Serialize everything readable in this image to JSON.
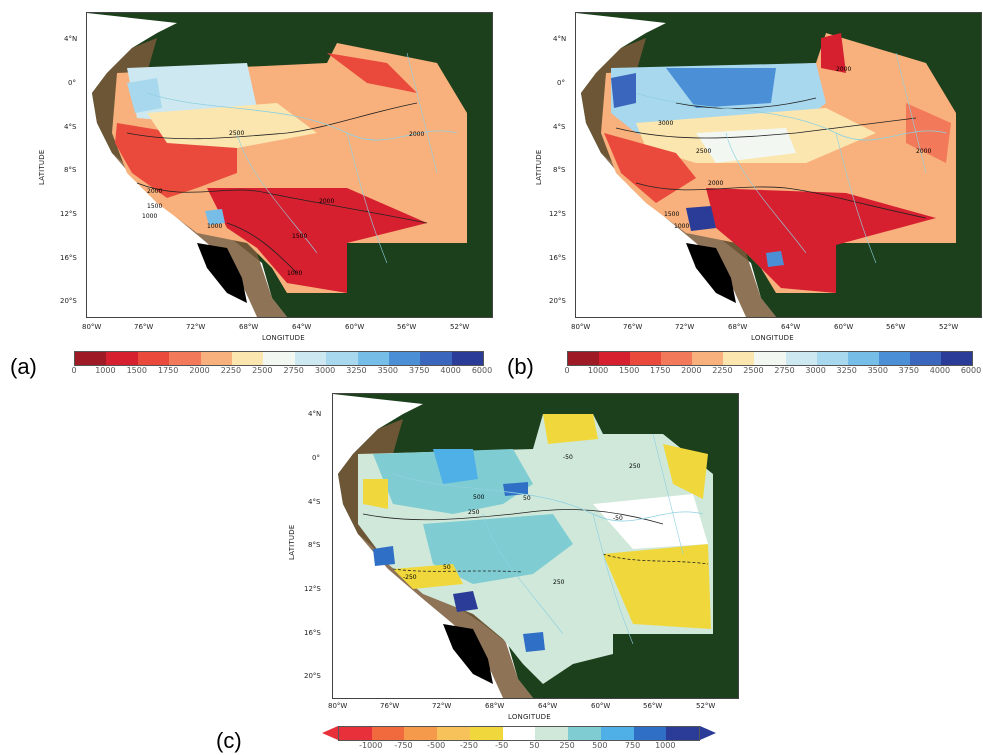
{
  "panels": [
    {
      "letter": "(a)",
      "xlabel": "LONGITUDE",
      "ylabel": "LATITUDE",
      "lat_ticks": [
        "4°N",
        "0°",
        "4°S",
        "8°S",
        "12°S",
        "16°S",
        "20°S"
      ],
      "lon_ticks": [
        "80°W",
        "76°W",
        "72°W",
        "68°W",
        "64°W",
        "60°W",
        "56°W",
        "52°W"
      ],
      "contour_labels": [
        "2500",
        "2000",
        "2000",
        "2000",
        "1500",
        "1500",
        "1000",
        "1000",
        "1000"
      ],
      "colorbar": {
        "labels": [
          "0",
          "1000",
          "1500",
          "1750",
          "2000",
          "2250",
          "2500",
          "2750",
          "3000",
          "3250",
          "3500",
          "3750",
          "4000",
          "6000"
        ],
        "colors": [
          "#9e1a24",
          "#d62030",
          "#ea4a3c",
          "#f27a5a",
          "#f8b07c",
          "#fbe6b0",
          "#f2f7f2",
          "#cde8f0",
          "#a8d8ee",
          "#76bde8",
          "#4b8fd6",
          "#3a66be",
          "#2a3b98"
        ]
      }
    },
    {
      "letter": "(b)",
      "xlabel": "LONGITUDE",
      "ylabel": "LATITUDE",
      "lat_ticks": [
        "4°N",
        "0°",
        "4°S",
        "8°S",
        "12°S",
        "16°S",
        "20°S"
      ],
      "lon_ticks": [
        "80°W",
        "76°W",
        "72°W",
        "68°W",
        "64°W",
        "60°W",
        "56°W",
        "52°W"
      ],
      "contour_labels": [
        "2000",
        "3000",
        "2500",
        "2000",
        "2000",
        "1500",
        "1000"
      ],
      "colorbar": {
        "labels": [
          "0",
          "1000",
          "1500",
          "1750",
          "2000",
          "2250",
          "2500",
          "2750",
          "3000",
          "3250",
          "3500",
          "3750",
          "4000",
          "6000"
        ],
        "colors": [
          "#9e1a24",
          "#d62030",
          "#ea4a3c",
          "#f27a5a",
          "#f8b07c",
          "#fbe6b0",
          "#f2f7f2",
          "#cde8f0",
          "#a8d8ee",
          "#76bde8",
          "#4b8fd6",
          "#3a66be",
          "#2a3b98"
        ]
      }
    },
    {
      "letter": "(c)",
      "xlabel": "LONGITUDE",
      "ylabel": "LATITUDE",
      "lat_ticks": [
        "4°N",
        "0°",
        "4°S",
        "8°S",
        "12°S",
        "16°S",
        "20°S"
      ],
      "lon_ticks": [
        "80°W",
        "76°W",
        "72°W",
        "68°W",
        "64°W",
        "60°W",
        "56°W",
        "52°W"
      ],
      "contour_labels": [
        "250",
        "-50",
        "50",
        "500",
        "250",
        "-250",
        "50",
        "250",
        "-50"
      ],
      "colorbar": {
        "labels": [
          "-1000",
          "-750",
          "-500",
          "-250",
          "-50",
          "50",
          "250",
          "500",
          "750",
          "1000"
        ],
        "colors": [
          "#e8303a",
          "#f06a3e",
          "#f49a4a",
          "#f7c25a",
          "#f0d83c",
          "#ffffff",
          "#cfe8da",
          "#7fcdd2",
          "#4fb0e8",
          "#2f6fc6",
          "#2a3b98"
        ],
        "extend": "both"
      }
    }
  ],
  "colors": {
    "land": "#1c3f1c",
    "andes_shading": "#7a5a3a",
    "andes_dark": "#000000",
    "rivers": "#8fd0e0",
    "ocean": "#ffffff"
  }
}
